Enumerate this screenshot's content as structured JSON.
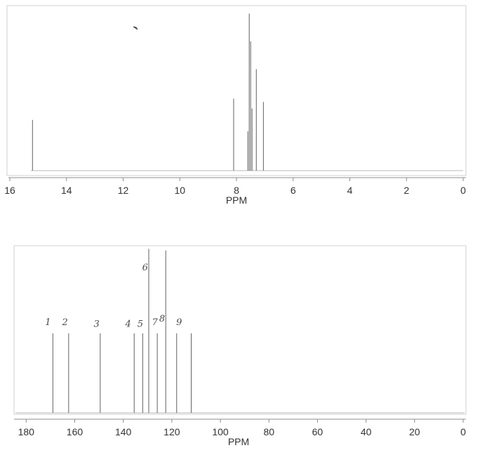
{
  "chart_data": [
    {
      "type": "line",
      "xlabel": "PPM",
      "xlim": [
        16,
        0
      ],
      "ylim": [
        0,
        1
      ],
      "grid": false,
      "x_ticks": [
        16,
        14,
        12,
        10,
        8,
        6,
        4,
        2,
        0
      ],
      "series": [
        {
          "values": [
            [
              15.2,
              0.31
            ],
            [
              8.1,
              0.44
            ],
            [
              7.6,
              0.24
            ],
            [
              7.55,
              0.96
            ],
            [
              7.5,
              0.79
            ],
            [
              7.45,
              0.38
            ],
            [
              7.3,
              0.62
            ],
            [
              7.05,
              0.42
            ]
          ]
        }
      ]
    },
    {
      "type": "line",
      "xlabel": "PPM",
      "xlim": [
        185,
        0
      ],
      "ylim": [
        0,
        1
      ],
      "grid": false,
      "x_ticks": [
        180,
        160,
        140,
        120,
        100,
        80,
        60,
        40,
        20,
        0
      ],
      "series": [
        {
          "values": [
            [
              169,
              0.48
            ],
            [
              162.5,
              0.48
            ],
            [
              149.5,
              0.48
            ],
            [
              135.5,
              0.48
            ],
            [
              132,
              0.48
            ],
            [
              129.5,
              0.99
            ],
            [
              126,
              0.48
            ],
            [
              122.5,
              0.98
            ],
            [
              118,
              0.48
            ],
            [
              112,
              0.48
            ]
          ]
        }
      ],
      "annotations": [
        {
          "text": "6",
          "x": 131,
          "y": 0.86
        },
        {
          "text": "1",
          "x": 171,
          "y": 0.53
        },
        {
          "text": "2",
          "x": 164,
          "y": 0.53
        },
        {
          "text": "3",
          "x": 151,
          "y": 0.52
        },
        {
          "text": "4",
          "x": 138,
          "y": 0.52
        },
        {
          "text": "5",
          "x": 133,
          "y": 0.52
        },
        {
          "text": "7",
          "x": 127,
          "y": 0.53
        },
        {
          "text": "8",
          "x": 124,
          "y": 0.55
        },
        {
          "text": "9",
          "x": 117,
          "y": 0.53
        }
      ]
    }
  ]
}
